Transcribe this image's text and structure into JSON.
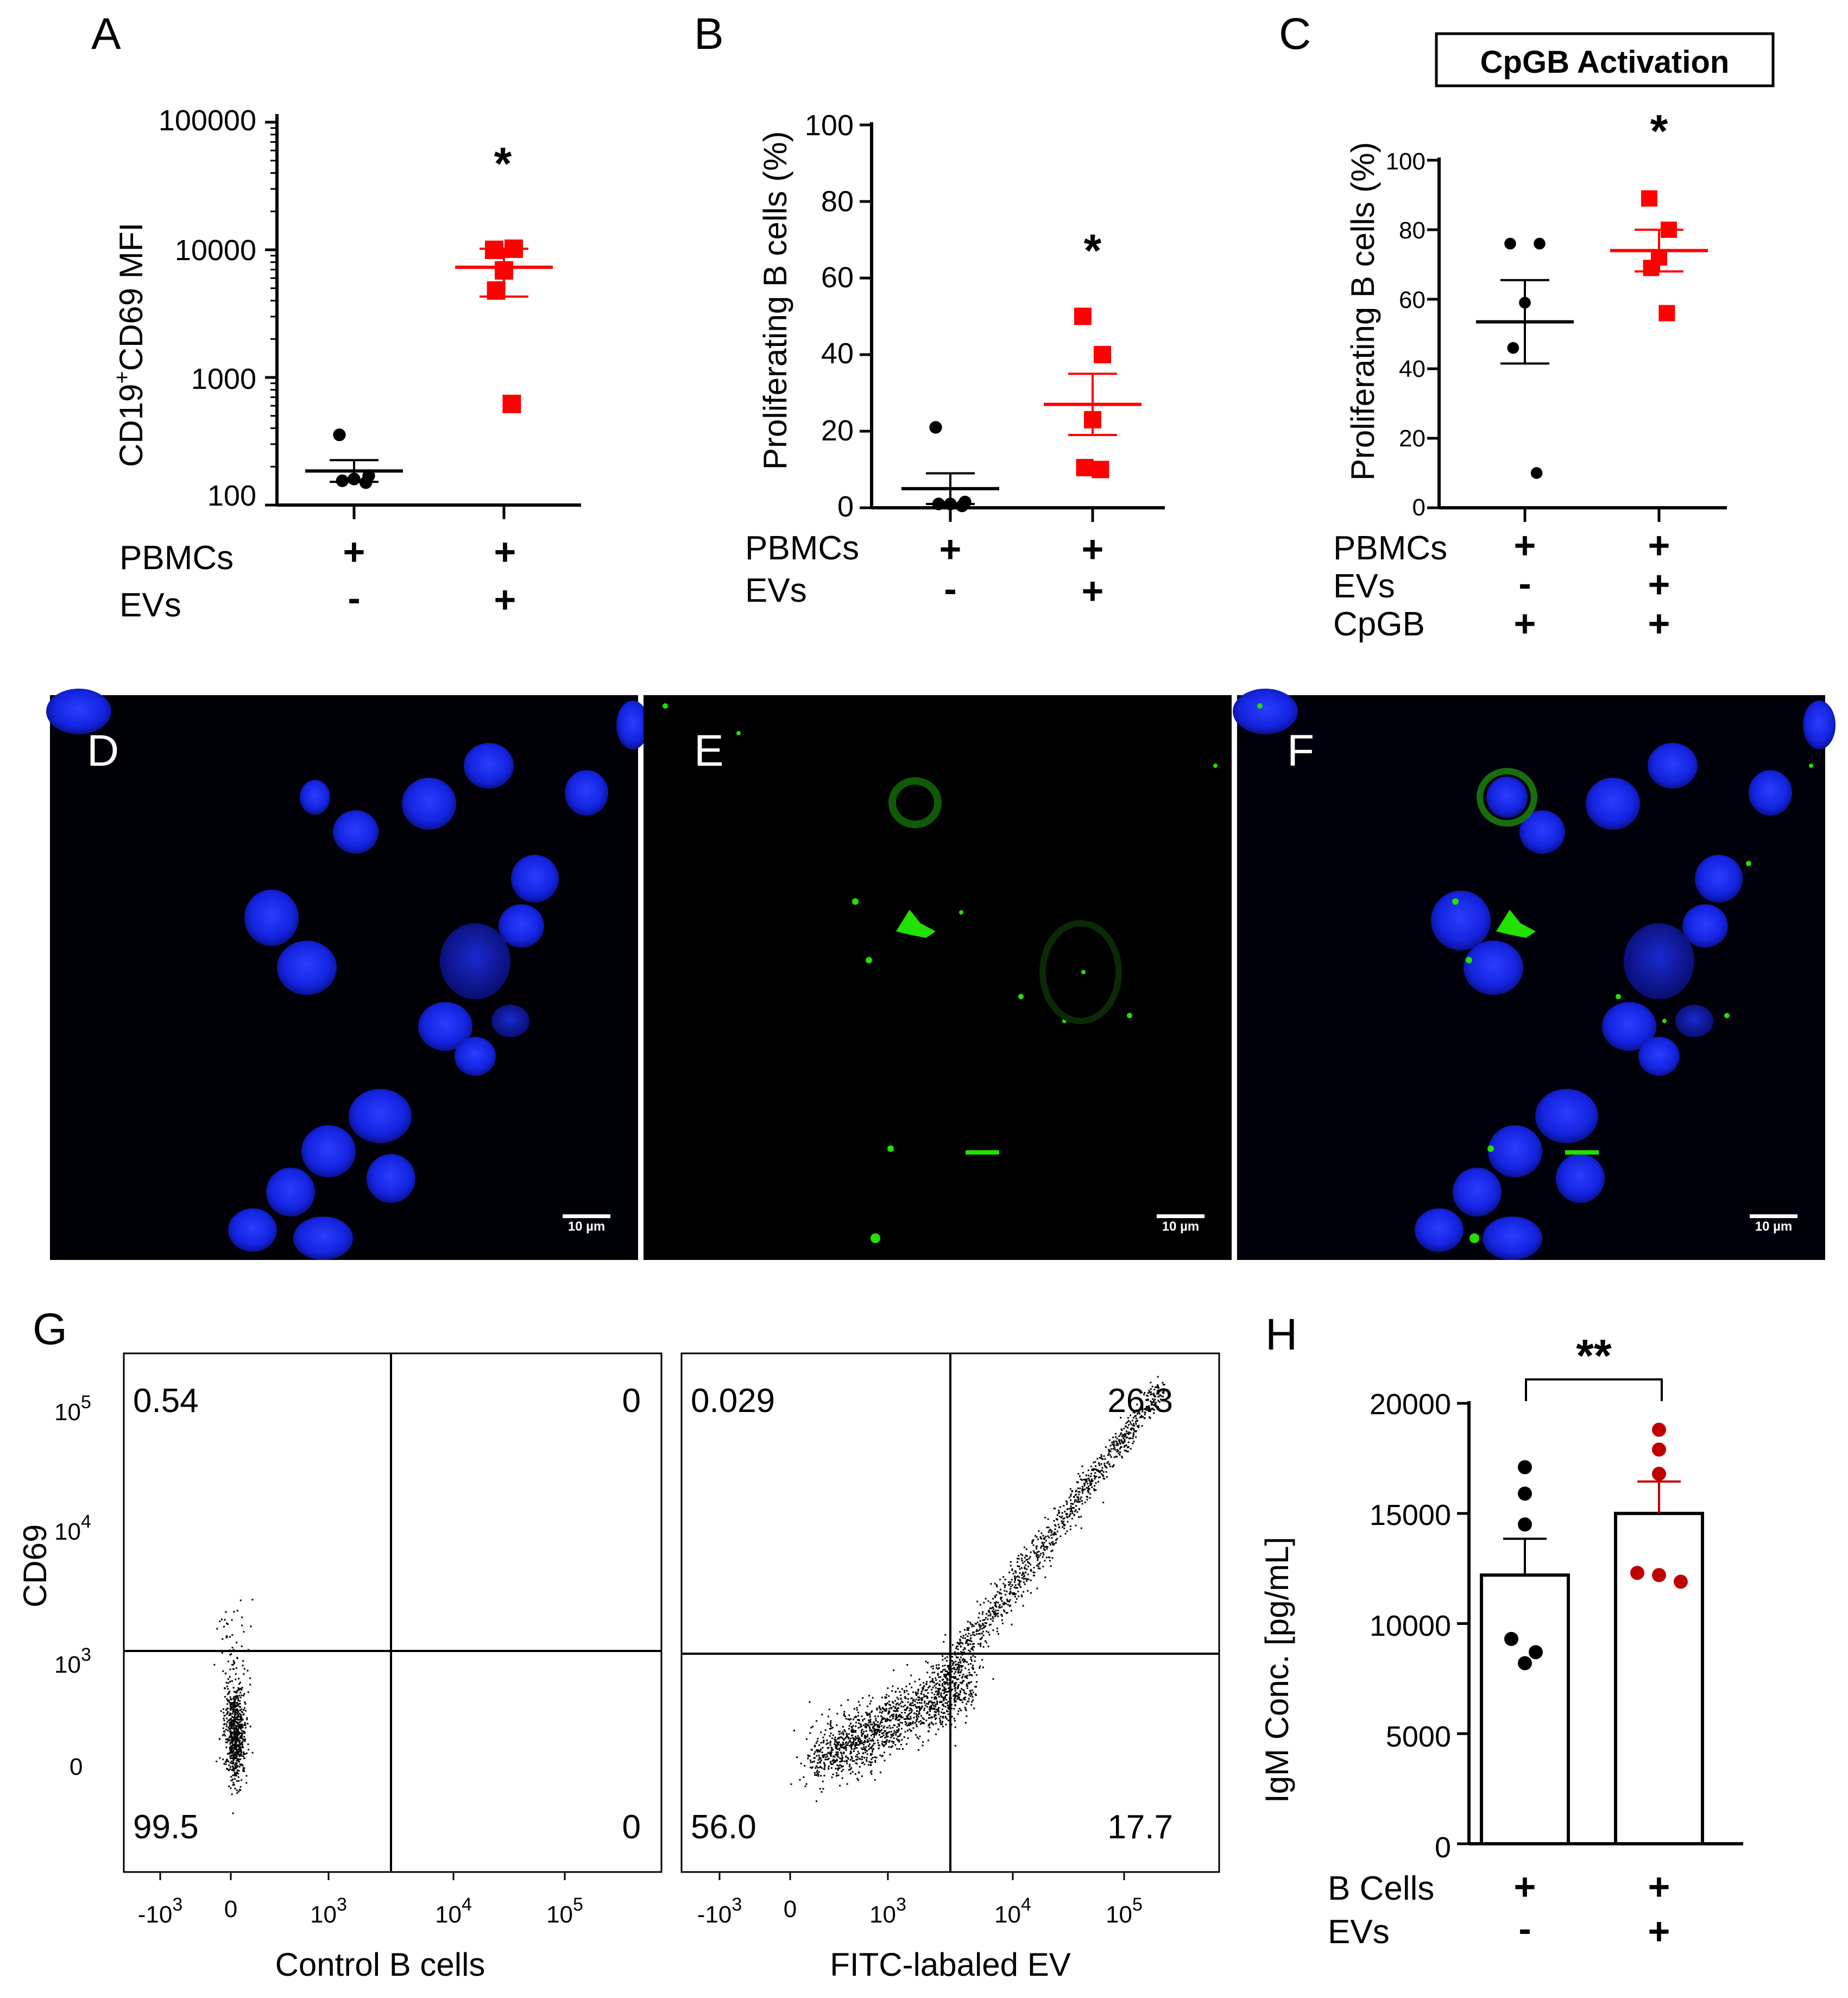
{
  "colors": {
    "control": "#000000",
    "treated": "#ff0000",
    "treated_h": "#c00000",
    "nucleus_blue": "#1a2cff",
    "ev_green": "#22e000",
    "panel_bg": "#000008"
  },
  "panels": {
    "A": {
      "letter": "A",
      "ylabel_main": "CD19",
      "ylabel_sup": "+",
      "ylabel_rest": "CD69 MFI",
      "ticks": [
        "100",
        "1000",
        "10000",
        "100000"
      ],
      "star": "*",
      "rows": [
        {
          "label": "PBMCs",
          "signs": [
            "+",
            "+"
          ]
        },
        {
          "label": "EVs",
          "signs": [
            "-",
            "+"
          ]
        }
      ]
    },
    "B": {
      "letter": "B",
      "ylabel": "Proliferating B cells (%)",
      "ticks": [
        "0",
        "20",
        "40",
        "60",
        "80",
        "100"
      ],
      "star": "*",
      "rows": [
        {
          "label": "PBMCs",
          "signs": [
            "+",
            "+"
          ]
        },
        {
          "label": "EVs",
          "signs": [
            "-",
            "+"
          ]
        }
      ]
    },
    "C": {
      "letter": "C",
      "title": "CpGB Activation",
      "ylabel": "Proliferating B cells (%)",
      "ticks": [
        "0",
        "20",
        "40",
        "60",
        "80",
        "100"
      ],
      "star": "*",
      "rows": [
        {
          "label": "PBMCs",
          "signs": [
            "+",
            "+"
          ]
        },
        {
          "label": "EVs",
          "signs": [
            "-",
            "+"
          ]
        },
        {
          "label": "CpGB",
          "signs": [
            "+",
            "+"
          ]
        }
      ]
    },
    "D": {
      "letter": "D",
      "scalebar": "10 µm"
    },
    "E": {
      "letter": "E",
      "scalebar": "10 µm"
    },
    "F": {
      "letter": "F",
      "scalebar": "10 µm"
    },
    "G": {
      "letter": "G",
      "ylabel": "CD69",
      "y_ticks": [
        {
          "base": "10",
          "exp": "5"
        },
        {
          "base": "10",
          "exp": "4"
        },
        {
          "base": "10",
          "exp": "3"
        },
        {
          "base": "0",
          "exp": ""
        }
      ],
      "x_ticks": [
        {
          "base": "-10",
          "exp": "3"
        },
        {
          "base": "0",
          "exp": ""
        },
        {
          "base": "10",
          "exp": "3"
        },
        {
          "base": "10",
          "exp": "4"
        },
        {
          "base": "10",
          "exp": "5"
        }
      ],
      "left": {
        "xlabel": "Control B cells",
        "quadrants": {
          "ul": "0.54",
          "ur": "0",
          "ll": "99.5",
          "lr": "0"
        }
      },
      "right": {
        "xlabel": "FITC-labaled EV",
        "quadrants": {
          "ul": "0.029",
          "ur": "26.3",
          "ll": "56.0",
          "lr": "17.7"
        }
      }
    },
    "H": {
      "letter": "H",
      "ylabel": "IgM Conc. [pg/mL]",
      "ticks": [
        "0",
        "5000",
        "10000",
        "15000",
        "20000"
      ],
      "star": "**",
      "rows": [
        {
          "label": "B Cells",
          "signs": [
            "+",
            "+"
          ]
        },
        {
          "label": "EVs",
          "signs": [
            "-",
            "+"
          ]
        }
      ]
    }
  },
  "chart_data": [
    {
      "panel": "A",
      "type": "scatter",
      "ylabel": "CD19+CD69 MFI",
      "yscale": "log",
      "ylim": [
        100,
        100000
      ],
      "groups": [
        {
          "name": "PBMCs + / EVs -",
          "points": [
            355,
            170,
            160,
            155,
            150
          ],
          "mean": 185,
          "sem_low": 152,
          "sem_high": 225
        },
        {
          "name": "PBMCs + / EVs +",
          "points": [
            10000,
            10200,
            6900,
            4800,
            620
          ],
          "mean": 7300,
          "sem_low": 4300,
          "sem_high": 10200
        }
      ],
      "annotation": "*"
    },
    {
      "panel": "B",
      "type": "scatter",
      "ylabel": "Proliferating B cells (%)",
      "ylim": [
        0,
        100
      ],
      "groups": [
        {
          "name": "PBMCs + / EVs -",
          "points": [
            21,
            1.5,
            1,
            1,
            0.5
          ],
          "mean": 5,
          "sem_low": 1,
          "sem_high": 9
        },
        {
          "name": "PBMCs + / EVs +",
          "points": [
            50,
            40,
            23,
            10.5,
            10
          ],
          "mean": 27,
          "sem_low": 19,
          "sem_high": 35
        }
      ],
      "annotation": "*"
    },
    {
      "panel": "C",
      "type": "scatter",
      "title": "CpGB Activation",
      "ylabel": "Proliferating B cells (%)",
      "ylim": [
        0,
        100
      ],
      "groups": [
        {
          "name": "PBMCs + / EVs - / CpGB +",
          "points": [
            76,
            76,
            59,
            46,
            10
          ],
          "mean": 53.5,
          "sem_low": 41.5,
          "sem_high": 65.5
        },
        {
          "name": "PBMCs + / EVs + / CpGB +",
          "points": [
            89,
            80,
            72,
            69,
            56
          ],
          "mean": 74,
          "sem_low": 68,
          "sem_high": 80
        }
      ],
      "annotation": "*"
    },
    {
      "panel": "G",
      "type": "scatter",
      "ylabel": "CD69",
      "plots": [
        {
          "xlabel": "Control B cells",
          "quadrant_percent": {
            "upper_left": 0.54,
            "upper_right": 0,
            "lower_left": 99.5,
            "lower_right": 0
          }
        },
        {
          "xlabel": "FITC-labaled EV",
          "quadrant_percent": {
            "upper_left": 0.029,
            "upper_right": 26.3,
            "lower_left": 56.0,
            "lower_right": 17.7
          }
        }
      ]
    },
    {
      "panel": "H",
      "type": "bar",
      "ylabel": "IgM Conc. [pg/mL]",
      "ylim": [
        0,
        20000
      ],
      "groups": [
        {
          "name": "B Cells + / EVs -",
          "mean": 12200,
          "sem": 1650,
          "points": [
            17100,
            15900,
            14500,
            9300,
            8700,
            8200
          ]
        },
        {
          "name": "B Cells + / EVs +",
          "mean": 15000,
          "sem": 1450,
          "points": [
            18800,
            17900,
            16800,
            12300,
            12200,
            11900
          ]
        }
      ],
      "annotation": "**"
    }
  ]
}
